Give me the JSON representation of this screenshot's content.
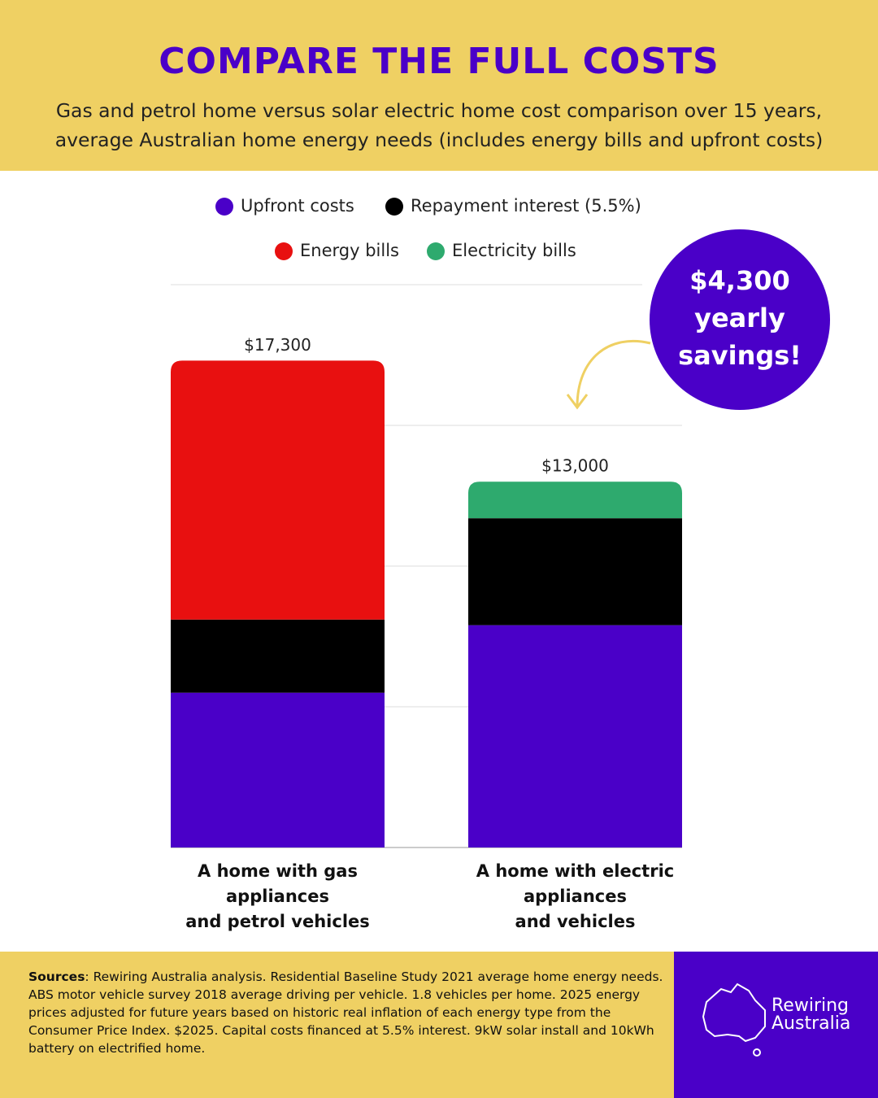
{
  "chart_data": {
    "type": "stacked_bar",
    "title": "Compare the full costs",
    "subtitle": "Gas and petrol home versus solar electric home cost comparison over 15 years,\naverage Australian home energy needs (includes energy bills and upfront costs)",
    "categories": [
      "A home with gas\nappliances\nand petrol vehicles",
      "A home with electric\nappliances\nand vehicles"
    ],
    "series": [
      {
        "name": "Upfront costs",
        "color": "#4a00c8",
        "values": [
          5500,
          7900
        ]
      },
      {
        "name": "Repayment interest (5.5%)",
        "color": "#000000",
        "values": [
          2600,
          3800
        ]
      },
      {
        "name": "Energy bills",
        "color": "#e81010",
        "values": [
          9200,
          null
        ]
      },
      {
        "name": "Electricity bills",
        "color": "#2eaa6e",
        "values": [
          null,
          1300
        ]
      }
    ],
    "totals": [
      17300,
      13000
    ],
    "total_labels": [
      "$17,300",
      "$13,000"
    ],
    "ylim": [
      0,
      20000
    ],
    "yticks": [
      0,
      5000,
      10000,
      15000,
      20000
    ],
    "grid": true,
    "annotation": "$4,300\nyearly\nsavings!",
    "sources_label": "Sources",
    "sources": ": Rewiring Australia analysis. Residential Baseline Study 2021 average home energy needs.\nABS motor vehicle survey 2018 average driving per vehicle. 1.8 vehicles per home. 2025 energy\nprices adjusted for future years based on historic real inflation of each energy type from the\nConsumer Price Index. $2025. Capital costs financed at 5.5% interest. 9kW solar install and 10kWh\nbattery on electrified home.",
    "brand": "Rewiring\nAustralia"
  }
}
